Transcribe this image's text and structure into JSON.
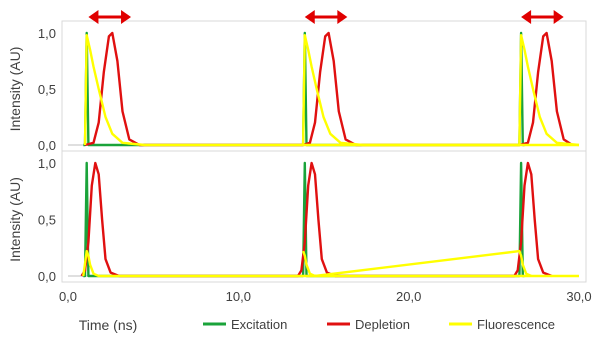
{
  "chart_data": [
    {
      "type": "line",
      "panel": "top",
      "ylabel": "Intensity (AU)",
      "xlim": [
        0,
        30
      ],
      "ylim": [
        0,
        1
      ],
      "y_ticks": [
        "0,0",
        "0,5",
        "1,0"
      ],
      "grid": false,
      "annotations": [
        {
          "type": "double-arrow",
          "color": "#e00000",
          "x_from": 1.2,
          "x_to": 3.7
        },
        {
          "type": "double-arrow",
          "color": "#e00000",
          "x_from": 13.9,
          "x_to": 16.4
        },
        {
          "type": "double-arrow",
          "color": "#e00000",
          "x_from": 26.6,
          "x_to": 29.1
        }
      ],
      "series": [
        {
          "name": "Excitation",
          "color": "#1aa33a",
          "x": [
            0.9,
            1.0,
            1.1,
            1.2,
            1.3,
            13.7,
            13.8,
            13.9,
            14.0,
            14.1,
            26.4,
            26.5,
            26.6,
            26.7,
            26.8
          ],
          "y": [
            0.0,
            0.0,
            1.0,
            0.0,
            0.0,
            0.0,
            0.0,
            1.0,
            0.0,
            0.0,
            0.0,
            0.0,
            1.0,
            0.0,
            0.0
          ]
        },
        {
          "name": "Depletion",
          "color": "#e01010",
          "x": [
            1.0,
            1.5,
            1.8,
            2.1,
            2.4,
            2.6,
            2.9,
            3.2,
            3.6,
            4.2,
            13.8,
            14.2,
            14.5,
            14.8,
            15.1,
            15.3,
            15.6,
            15.9,
            16.3,
            16.9,
            26.5,
            27.0,
            27.3,
            27.6,
            27.9,
            28.1,
            28.4,
            28.7,
            29.1,
            29.6
          ],
          "y": [
            0.0,
            0.02,
            0.2,
            0.65,
            0.97,
            1.0,
            0.75,
            0.3,
            0.05,
            0.0,
            0.0,
            0.02,
            0.2,
            0.65,
            0.97,
            1.0,
            0.75,
            0.3,
            0.05,
            0.0,
            0.0,
            0.02,
            0.2,
            0.65,
            0.97,
            1.0,
            0.75,
            0.3,
            0.05,
            0.0
          ]
        },
        {
          "name": "Fluorescence",
          "color": "#ffff00",
          "x": [
            1.0,
            1.1,
            1.3,
            1.5,
            1.8,
            2.2,
            2.6,
            3.2,
            4.5,
            30.0,
            13.8,
            13.9,
            14.1,
            14.3,
            14.6,
            15.0,
            15.4,
            16.0,
            17.3,
            26.5,
            26.6,
            26.8,
            27.0,
            27.3,
            27.7,
            28.1,
            28.7,
            30.0
          ],
          "y": [
            0.0,
            0.98,
            0.85,
            0.7,
            0.5,
            0.25,
            0.1,
            0.02,
            0.0,
            0.0,
            0.0,
            0.98,
            0.85,
            0.7,
            0.5,
            0.25,
            0.1,
            0.02,
            0.0,
            0.0,
            0.98,
            0.85,
            0.7,
            0.5,
            0.25,
            0.1,
            0.02,
            0.0
          ]
        }
      ]
    },
    {
      "type": "line",
      "panel": "bottom",
      "ylabel": "Intensity (AU)",
      "xlabel": "Time (ns)",
      "xlim": [
        0,
        30
      ],
      "ylim": [
        0,
        1
      ],
      "y_ticks": [
        "0,0",
        "0,5",
        "1,0"
      ],
      "x_ticks": [
        "0,0",
        "10,0",
        "20,0",
        "30,0"
      ],
      "grid": false,
      "legend": "bottom",
      "series": [
        {
          "name": "Excitation",
          "color": "#1aa33a",
          "x": [
            0.9,
            1.0,
            1.1,
            1.2,
            1.3,
            13.7,
            13.8,
            13.9,
            14.0,
            14.1,
            26.4,
            26.5,
            26.6,
            26.7,
            26.8
          ],
          "y": [
            0.0,
            0.0,
            1.0,
            0.0,
            0.0,
            0.0,
            0.0,
            1.0,
            0.0,
            0.0,
            0.0,
            0.0,
            1.0,
            0.0,
            0.0
          ]
        },
        {
          "name": "Depletion",
          "color": "#e01010",
          "x": [
            0.8,
            1.0,
            1.2,
            1.4,
            1.6,
            1.8,
            2.0,
            2.2,
            2.5,
            3.0,
            13.5,
            13.7,
            13.9,
            14.1,
            14.3,
            14.5,
            14.7,
            14.9,
            15.2,
            15.7,
            26.2,
            26.4,
            26.6,
            26.8,
            27.0,
            27.2,
            27.4,
            27.6,
            27.9,
            28.4
          ],
          "y": [
            0.0,
            0.05,
            0.3,
            0.8,
            1.0,
            0.9,
            0.5,
            0.15,
            0.03,
            0.0,
            0.0,
            0.05,
            0.3,
            0.8,
            1.0,
            0.9,
            0.5,
            0.15,
            0.03,
            0.0,
            0.0,
            0.05,
            0.3,
            0.8,
            1.0,
            0.9,
            0.5,
            0.15,
            0.03,
            0.0
          ]
        },
        {
          "name": "Fluorescence",
          "color": "#ffff00",
          "x": [
            0.9,
            1.1,
            1.2,
            1.3,
            1.5,
            1.8,
            30.0,
            13.8,
            13.9,
            14.0,
            14.2,
            14.5,
            26.5,
            26.6,
            26.7,
            26.9,
            27.2
          ],
          "y": [
            0.0,
            0.22,
            0.18,
            0.1,
            0.02,
            0.0,
            0.0,
            0.22,
            0.18,
            0.1,
            0.02,
            0.0,
            0.22,
            0.18,
            0.1,
            0.02,
            0.0
          ]
        }
      ]
    }
  ],
  "legend": {
    "items": [
      {
        "label": "Excitation",
        "color": "#1aa33a"
      },
      {
        "label": "Depletion",
        "color": "#e01010"
      },
      {
        "label": "Fluorescence",
        "color": "#ffff00"
      }
    ]
  }
}
